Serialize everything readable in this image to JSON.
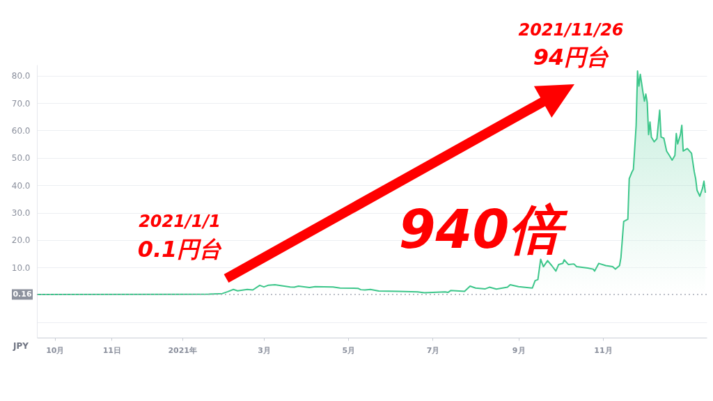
{
  "chart_data": {
    "type": "area",
    "title": "940倍",
    "annotations": [
      "2021/11/26",
      "94円台",
      "2021/1/1",
      "0.1円台",
      "JPY"
    ],
    "x": [
      "2020-09-18",
      "2021-01-20",
      "2021-01-30",
      "2021-02-03",
      "2021-02-07",
      "2021-02-10",
      "2021-02-17",
      "2021-02-21",
      "2021-02-26",
      "2021-03-01",
      "2021-03-04",
      "2021-03-09",
      "2021-03-20",
      "2021-03-23",
      "2021-03-26",
      "2021-04-03",
      "2021-04-07",
      "2021-04-20",
      "2021-04-25",
      "2021-05-08",
      "2021-05-10",
      "2021-05-13",
      "2021-05-17",
      "2021-05-23",
      "2021-06-06",
      "2021-06-20",
      "2021-06-25",
      "2021-07-10",
      "2021-07-12",
      "2021-07-14",
      "2021-07-24",
      "2021-07-28",
      "2021-08-01",
      "2021-08-08",
      "2021-08-11",
      "2021-08-16",
      "2021-08-24",
      "2021-08-26",
      "2021-09-01",
      "2021-09-11",
      "2021-09-13",
      "2021-09-15",
      "2021-09-17",
      "2021-09-19",
      "2021-09-22",
      "2021-09-25",
      "2021-09-28",
      "2021-09-30",
      "2021-10-03",
      "2021-10-04",
      "2021-10-07",
      "2021-10-11",
      "2021-10-13",
      "2021-10-21",
      "2021-10-25",
      "2021-10-26",
      "2021-10-29",
      "2021-11-03",
      "2021-11-08",
      "2021-11-10",
      "2021-11-13",
      "2021-11-14",
      "2021-11-16",
      "2021-11-19",
      "2021-11-20",
      "2021-11-22",
      "2021-11-23",
      "2021-11-25",
      "2021-11-26",
      "2021-11-27",
      "2021-11-28",
      "2021-11-30",
      "2021-12-01",
      "2021-12-02",
      "2021-12-03",
      "2021-12-04",
      "2021-12-05",
      "2021-12-06",
      "2021-12-08",
      "2021-12-10",
      "2021-12-12",
      "2021-12-13",
      "2021-12-15",
      "2021-12-17",
      "2021-12-19",
      "2021-12-21",
      "2021-12-23",
      "2021-12-24",
      "2021-12-25",
      "2021-12-27",
      "2021-12-28",
      "2021-12-29",
      "2022-01-01",
      "2022-01-04",
      "2022-01-06",
      "2022-01-07",
      "2022-01-08",
      "2022-01-10",
      "2022-01-12",
      "2022-01-13",
      "2022-01-14"
    ],
    "series": [
      {
        "color": "#3cc68a",
        "values": [
          0.16,
          0.25,
          0.5,
          1.2,
          2.0,
          1.5,
          2.0,
          1.8,
          3.5,
          2.9,
          3.5,
          3.7,
          2.9,
          2.8,
          3.2,
          2.7,
          3.0,
          2.9,
          2.5,
          2.4,
          1.9,
          1.8,
          2.0,
          1.4,
          1.3,
          1.1,
          0.8,
          1.1,
          0.9,
          1.6,
          1.3,
          3.2,
          2.5,
          2.2,
          2.8,
          2.1,
          2.8,
          3.7,
          3.0,
          2.5,
          5.2,
          5.6,
          13,
          10.3,
          12.5,
          10.7,
          8.7,
          11.1,
          11.5,
          12.8,
          11.1,
          11.3,
          10.3,
          9.8,
          9.4,
          8.7,
          11.5,
          10.7,
          10.3,
          9.4,
          10.7,
          13.6,
          26.8,
          27.6,
          42.4,
          44.9,
          45.8,
          61.9,
          81.7,
          76.2,
          80.5,
          73.7,
          70.7,
          73.3,
          70.3,
          58.5,
          63.1,
          57.6,
          55.9,
          57.0,
          67.4,
          57.6,
          57.2,
          52.5,
          50.9,
          49.2,
          50.9,
          58.9,
          55.1,
          58.5,
          61.9,
          52.5,
          53.4,
          51.7,
          44.9,
          42.4,
          38.2,
          36.0,
          39.0,
          41.5,
          37.3
        ]
      }
    ],
    "xlim": [
      "2020-09-18",
      "2022-01-15"
    ],
    "xticks": [
      {
        "value": "2020-10-01",
        "label": "10月"
      },
      {
        "value": "2020-11-11",
        "label": "11日"
      },
      {
        "value": "2021-01-01",
        "label": "2021年"
      },
      {
        "value": "2021-03-01",
        "label": "3月"
      },
      {
        "value": "2021-05-01",
        "label": "5月"
      },
      {
        "value": "2021-07-01",
        "label": "7月"
      },
      {
        "value": "2021-09-01",
        "label": "9月"
      },
      {
        "value": "2021-11-01",
        "label": "11月"
      }
    ],
    "ylim": [
      -15.6,
      84
    ],
    "yticks": [
      {
        "value": -10,
        "label": null
      },
      {
        "value": 10,
        "label": "10.0"
      },
      {
        "value": 20,
        "label": "20.0"
      },
      {
        "value": 30,
        "label": "30.0"
      },
      {
        "value": 40,
        "label": "40.0"
      },
      {
        "value": 50,
        "label": "50.0"
      },
      {
        "value": 60,
        "label": "60.0"
      },
      {
        "value": 70,
        "label": "70.0"
      },
      {
        "value": 80,
        "label": "80.0"
      }
    ],
    "ref_lines": [
      {
        "axis": "y",
        "value": 0.16,
        "label": "0.16",
        "color": "#a6abb6",
        "line_style": "dotted"
      }
    ],
    "grid": "y",
    "marker": "none",
    "line_style": "solid"
  }
}
